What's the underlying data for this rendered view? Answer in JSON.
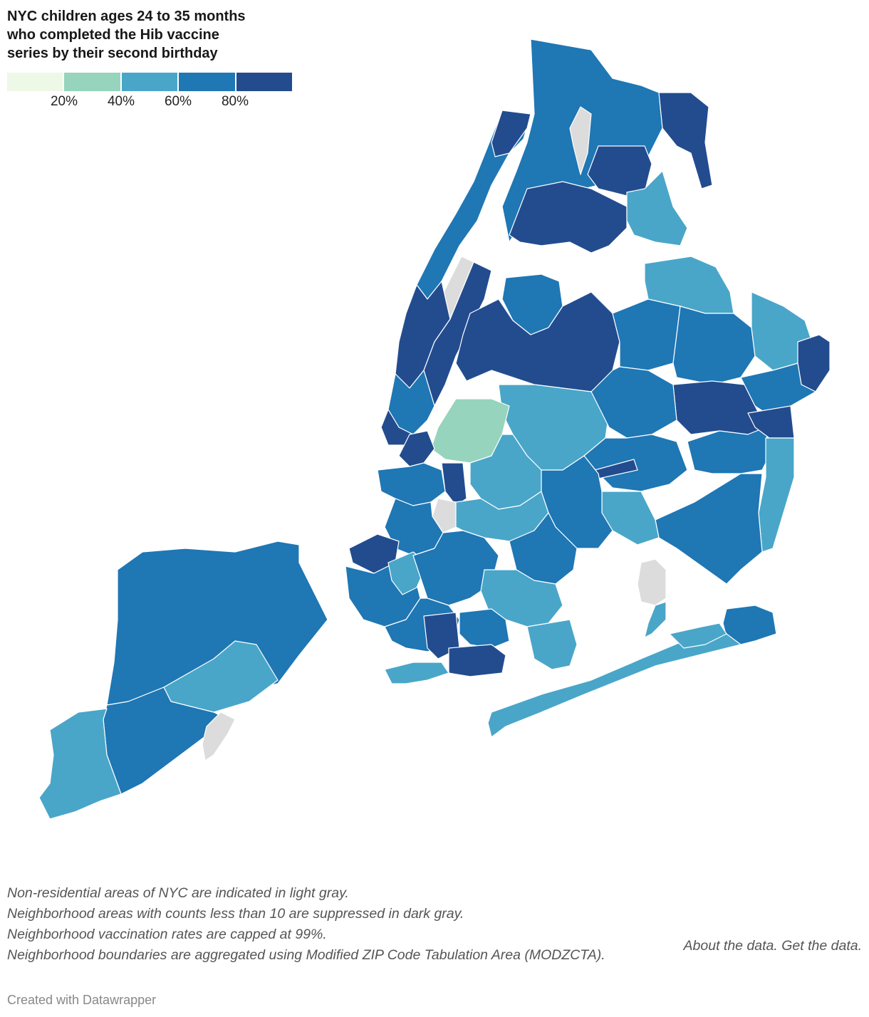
{
  "title_lines": [
    "NYC children ages 24 to 35 months",
    "who completed the Hib vaccine",
    "series by their second birthday"
  ],
  "legend": {
    "colors": [
      "#eef8e6",
      "#96d4bd",
      "#49a6c8",
      "#1f77b4",
      "#234c8f"
    ],
    "ticks": [
      "20%",
      "40%",
      "60%",
      "80%"
    ],
    "tick_values": [
      20,
      40,
      60,
      80
    ],
    "domain": [
      0,
      100
    ]
  },
  "colors": {
    "non_residential": "#dcdcdc",
    "borders": "#ffffff",
    "water": "#ffffff"
  },
  "notes": [
    "Non-residential areas of NYC are indicated in light gray.",
    "Neighborhood areas with counts less than 10 are suppressed in dark gray.",
    "Neighborhood vaccination rates are capped at 99%.",
    "Neighborhood boundaries are aggregated using Modified ZIP Code Tabulation Area (MODZCTA)."
  ],
  "links": {
    "about": "About the data.",
    "get": "Get the data."
  },
  "credit": "Created with Datawrapper"
}
